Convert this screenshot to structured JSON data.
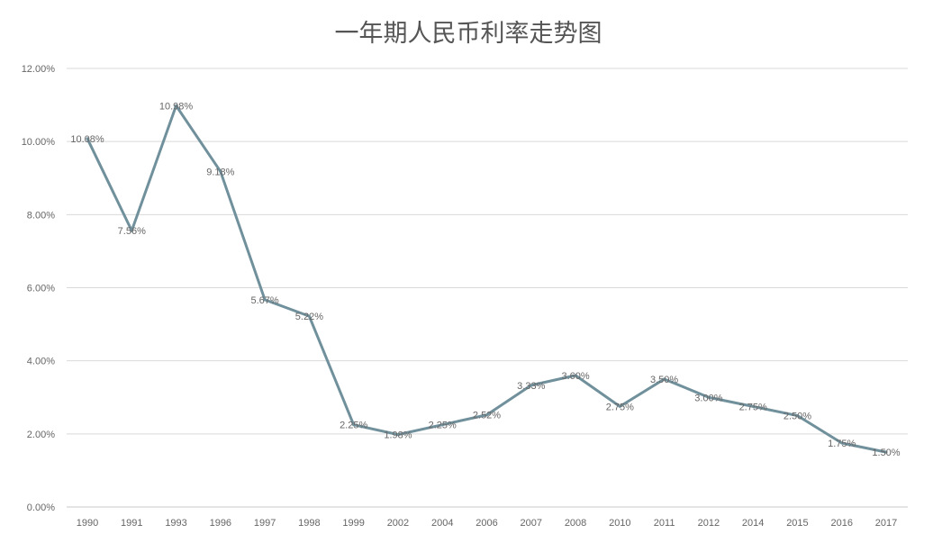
{
  "chart_data": {
    "type": "line",
    "title": "一年期人民币利率走势图",
    "xlabel": "",
    "ylabel": "",
    "categories": [
      "1990",
      "1991",
      "1993",
      "1996",
      "1997",
      "1998",
      "1999",
      "2002",
      "2004",
      "2006",
      "2007",
      "2008",
      "2010",
      "2011",
      "2012",
      "2014",
      "2015",
      "2016",
      "2017"
    ],
    "series": [
      {
        "values": [
          10.08,
          7.56,
          10.98,
          9.18,
          5.67,
          5.22,
          2.25,
          1.98,
          2.25,
          2.52,
          3.33,
          3.6,
          2.75,
          3.5,
          3.0,
          2.75,
          2.5,
          1.75,
          1.5
        ],
        "data_labels": [
          "10.08%",
          "7.56%",
          "10.98%",
          "9.18%",
          "5.67%",
          "5.22%",
          "2.25%",
          "1.98%",
          "2.25%",
          "2.52%",
          "3.33%",
          "3.60%",
          "2.75%",
          "3.50%",
          "3.00%",
          "2.75%",
          "2.50%",
          "1.75%",
          "1.50%"
        ],
        "color": "#70909C"
      }
    ],
    "ylim": [
      0,
      12
    ],
    "y_ticks": [
      0,
      2,
      4,
      6,
      8,
      10,
      12
    ],
    "y_tick_labels": [
      "0.00%",
      "2.00%",
      "4.00%",
      "6.00%",
      "8.00%",
      "10.00%",
      "12.00%"
    ],
    "grid": true,
    "grid_color": "#d9d9d9",
    "legend": "none"
  }
}
